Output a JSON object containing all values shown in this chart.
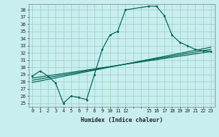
{
  "xlabel": "Humidex (Indice chaleur)",
  "ylabel": "",
  "xlim": [
    -0.5,
    23.5
  ],
  "ylim": [
    24.5,
    38.8
  ],
  "yticks": [
    25,
    26,
    27,
    28,
    29,
    30,
    31,
    32,
    33,
    34,
    35,
    36,
    37,
    38
  ],
  "xtick_positions": [
    0,
    1,
    2,
    3,
    4,
    5,
    6,
    7,
    8,
    9,
    10,
    11,
    12,
    13,
    14,
    15,
    16,
    17,
    18,
    19,
    20,
    21,
    22,
    23
  ],
  "xtick_labels": [
    "0",
    "1",
    "2",
    "3",
    "4",
    "5",
    "6",
    "7",
    "8",
    "9",
    "10",
    "11",
    "12",
    "",
    "",
    "15",
    "16",
    "17",
    "18",
    "19",
    "20",
    "21",
    "22",
    "23"
  ],
  "background_color": "#c8eef0",
  "grid_color": "#99ccbb",
  "line_color": "#006655",
  "line1": [
    [
      0,
      28.8
    ],
    [
      1,
      29.5
    ],
    [
      2,
      28.8
    ],
    [
      3,
      27.8
    ],
    [
      4,
      25.0
    ],
    [
      5,
      26.0
    ],
    [
      6,
      25.8
    ],
    [
      7,
      25.5
    ],
    [
      8,
      29.0
    ],
    [
      9,
      32.5
    ],
    [
      10,
      34.5
    ],
    [
      11,
      35.0
    ],
    [
      12,
      38.0
    ],
    [
      15,
      38.5
    ],
    [
      16,
      38.5
    ],
    [
      17,
      37.2
    ],
    [
      18,
      34.5
    ],
    [
      19,
      33.5
    ],
    [
      20,
      33.0
    ],
    [
      21,
      32.5
    ],
    [
      22,
      32.3
    ],
    [
      23,
      32.2
    ]
  ],
  "line2": [
    [
      0,
      28.5
    ],
    [
      23,
      32.2
    ]
  ],
  "line3": [
    [
      0,
      28.2
    ],
    [
      23,
      32.5
    ]
  ],
  "line4": [
    [
      0,
      27.9
    ],
    [
      23,
      32.8
    ]
  ]
}
